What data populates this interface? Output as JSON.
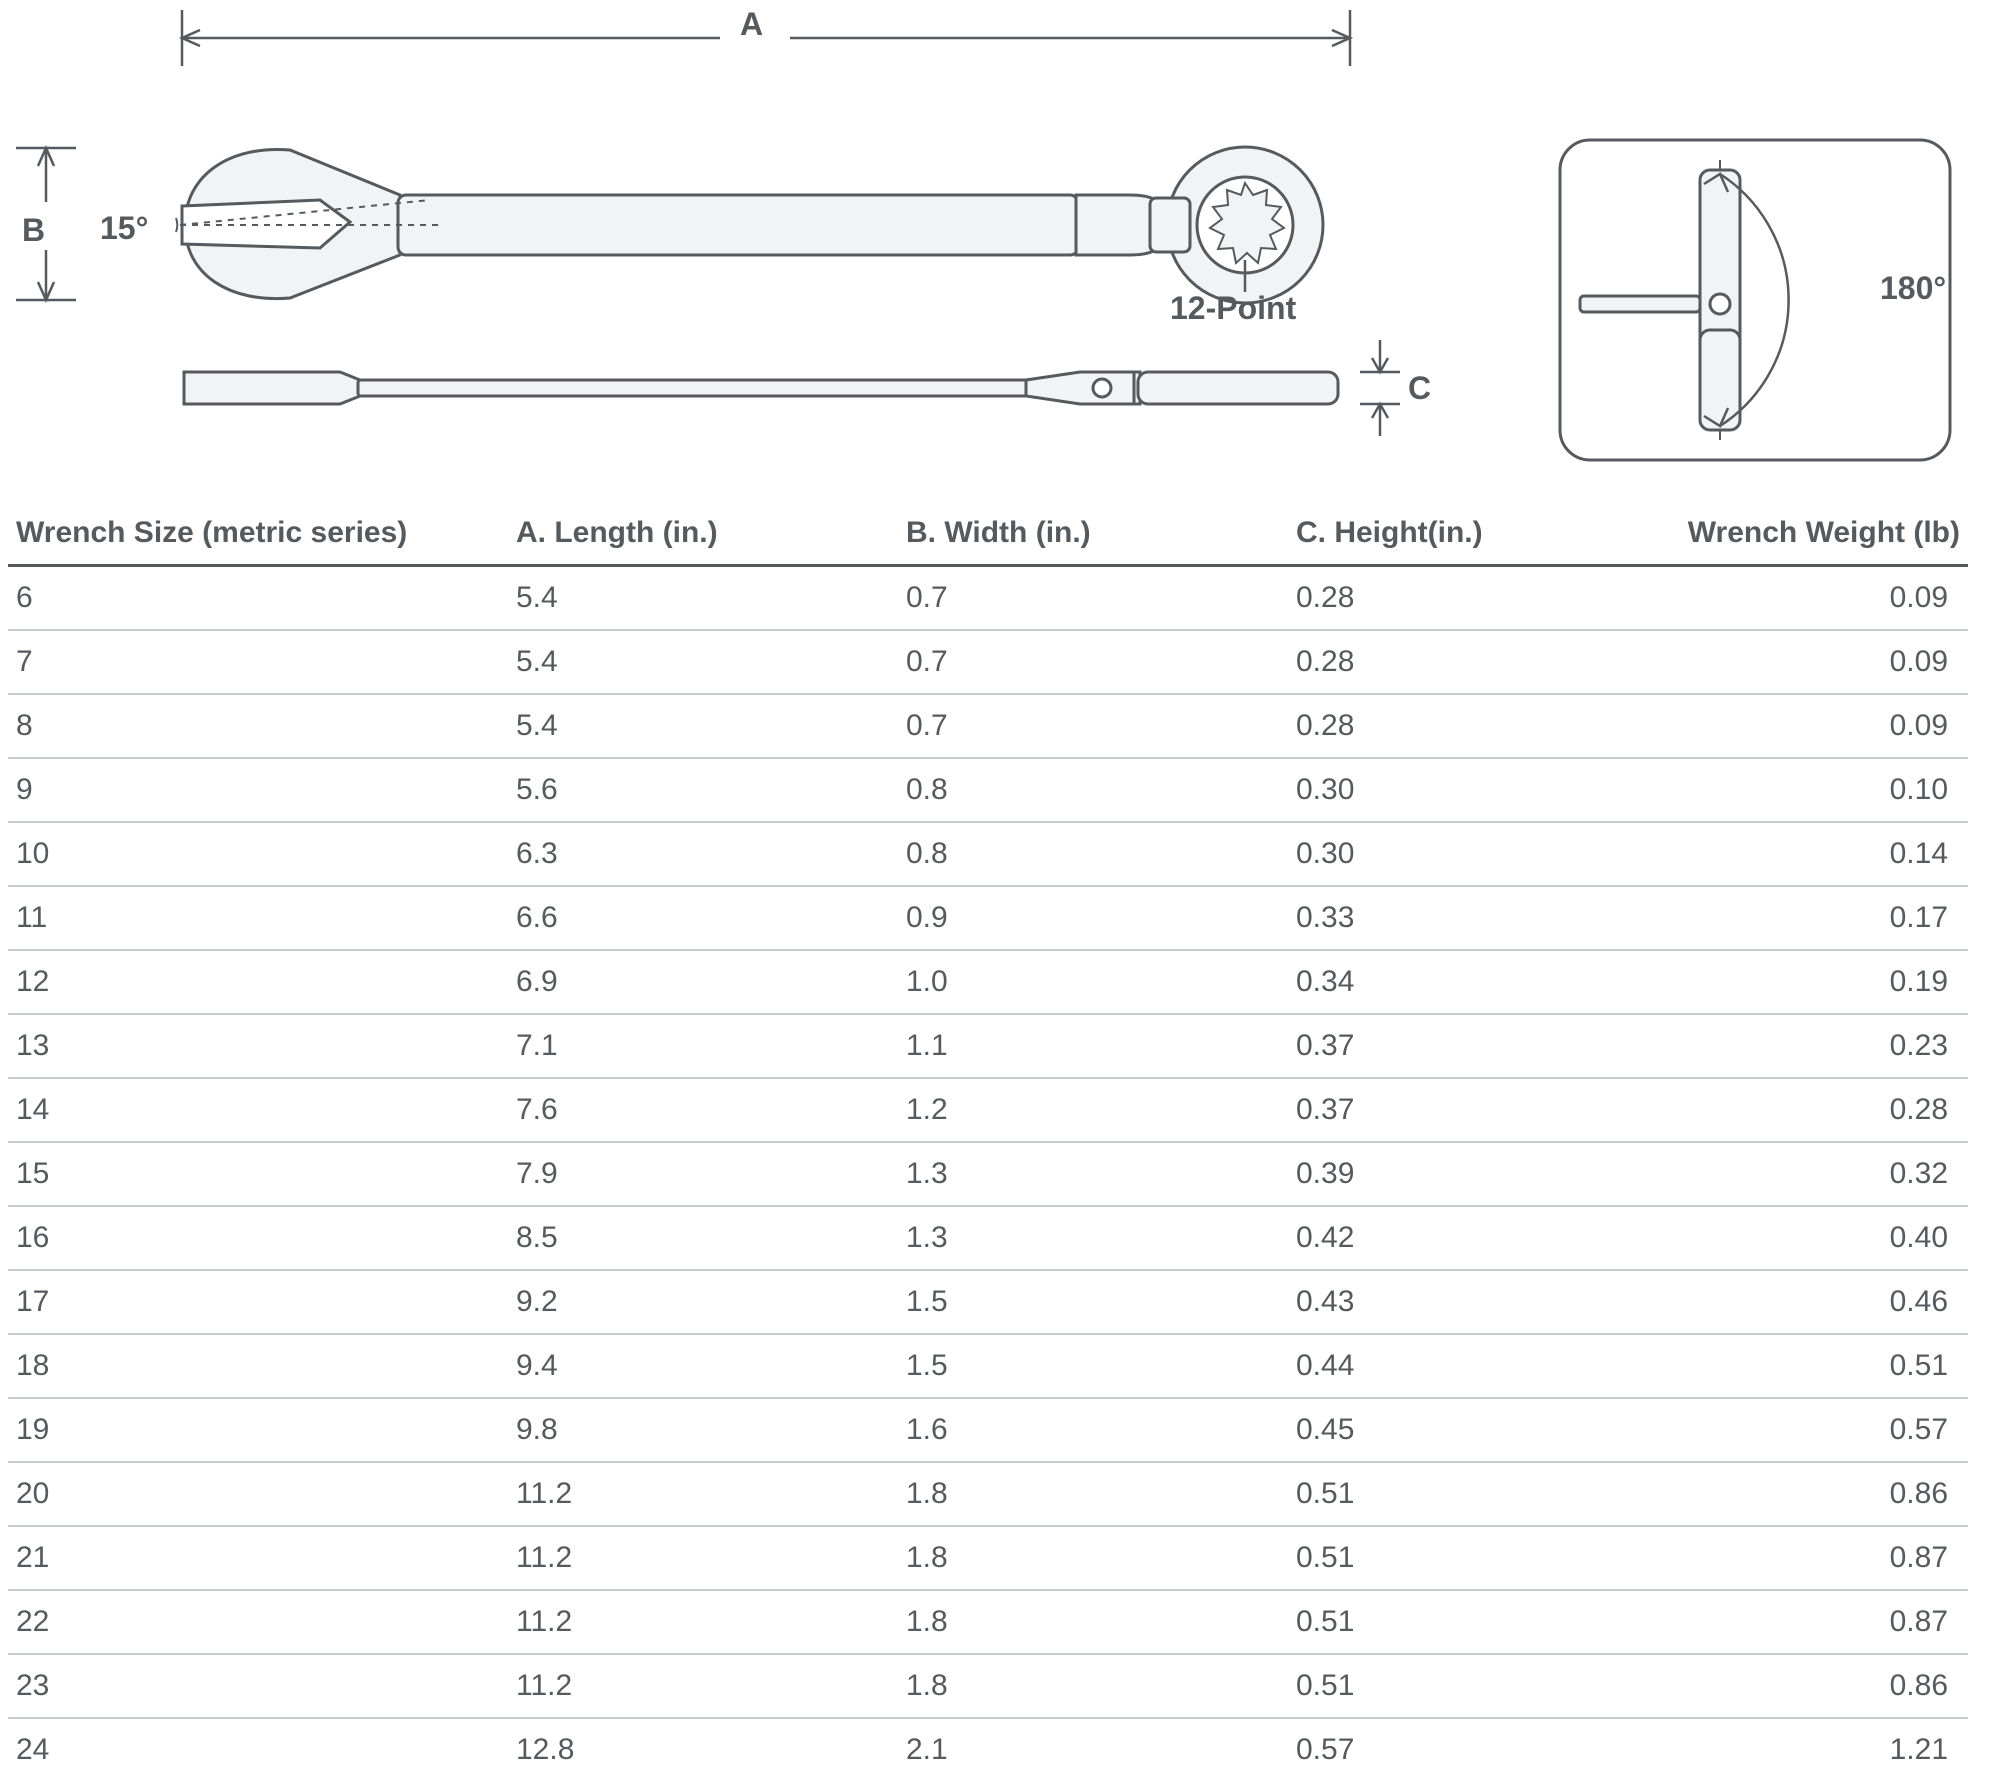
{
  "colors": {
    "stroke": "#555a5e",
    "fill_light": "#f2f3f4",
    "row_divider": "#c8cccf",
    "white": "#ffffff",
    "text": "#555a5e"
  },
  "diagram": {
    "dim_A_label": "A",
    "dim_B_label": "B",
    "dim_C_label": "C",
    "angle_open_label": "15°",
    "point_label": "12-Point",
    "swing_label": "180°",
    "stroke_width_main": 3,
    "stroke_width_dim": 2.5,
    "panel_border_radius": 30
  },
  "table": {
    "columns": [
      "Wrench Size (metric series)",
      "A. Length (in.)",
      "B. Width (in.)",
      "C. Height(in.)",
      "Wrench Weight (lb)"
    ],
    "rows": [
      [
        "6",
        "5.4",
        "0.7",
        "0.28",
        "0.09"
      ],
      [
        "7",
        "5.4",
        "0.7",
        "0.28",
        "0.09"
      ],
      [
        "8",
        "5.4",
        "0.7",
        "0.28",
        "0.09"
      ],
      [
        "9",
        "5.6",
        "0.8",
        "0.30",
        "0.10"
      ],
      [
        "10",
        "6.3",
        "0.8",
        "0.30",
        "0.14"
      ],
      [
        "11",
        "6.6",
        "0.9",
        "0.33",
        "0.17"
      ],
      [
        "12",
        "6.9",
        "1.0",
        "0.34",
        "0.19"
      ],
      [
        "13",
        "7.1",
        "1.1",
        "0.37",
        "0.23"
      ],
      [
        "14",
        "7.6",
        "1.2",
        "0.37",
        "0.28"
      ],
      [
        "15",
        "7.9",
        "1.3",
        "0.39",
        "0.32"
      ],
      [
        "16",
        "8.5",
        "1.3",
        "0.42",
        "0.40"
      ],
      [
        "17",
        "9.2",
        "1.5",
        "0.43",
        "0.46"
      ],
      [
        "18",
        "9.4",
        "1.5",
        "0.44",
        "0.51"
      ],
      [
        "19",
        "9.8",
        "1.6",
        "0.45",
        "0.57"
      ],
      [
        "20",
        "11.2",
        "1.8",
        "0.51",
        "0.86"
      ],
      [
        "21",
        "11.2",
        "1.8",
        "0.51",
        "0.87"
      ],
      [
        "22",
        "11.2",
        "1.8",
        "0.51",
        "0.87"
      ],
      [
        "23",
        "11.2",
        "1.8",
        "0.51",
        "0.86"
      ],
      [
        "24",
        "12.8",
        "2.1",
        "0.57",
        "1.21"
      ]
    ],
    "header_fontsize": 30,
    "body_fontsize": 30,
    "header_rule_color": "#555a5e",
    "row_rule_color": "#c8cccf"
  }
}
